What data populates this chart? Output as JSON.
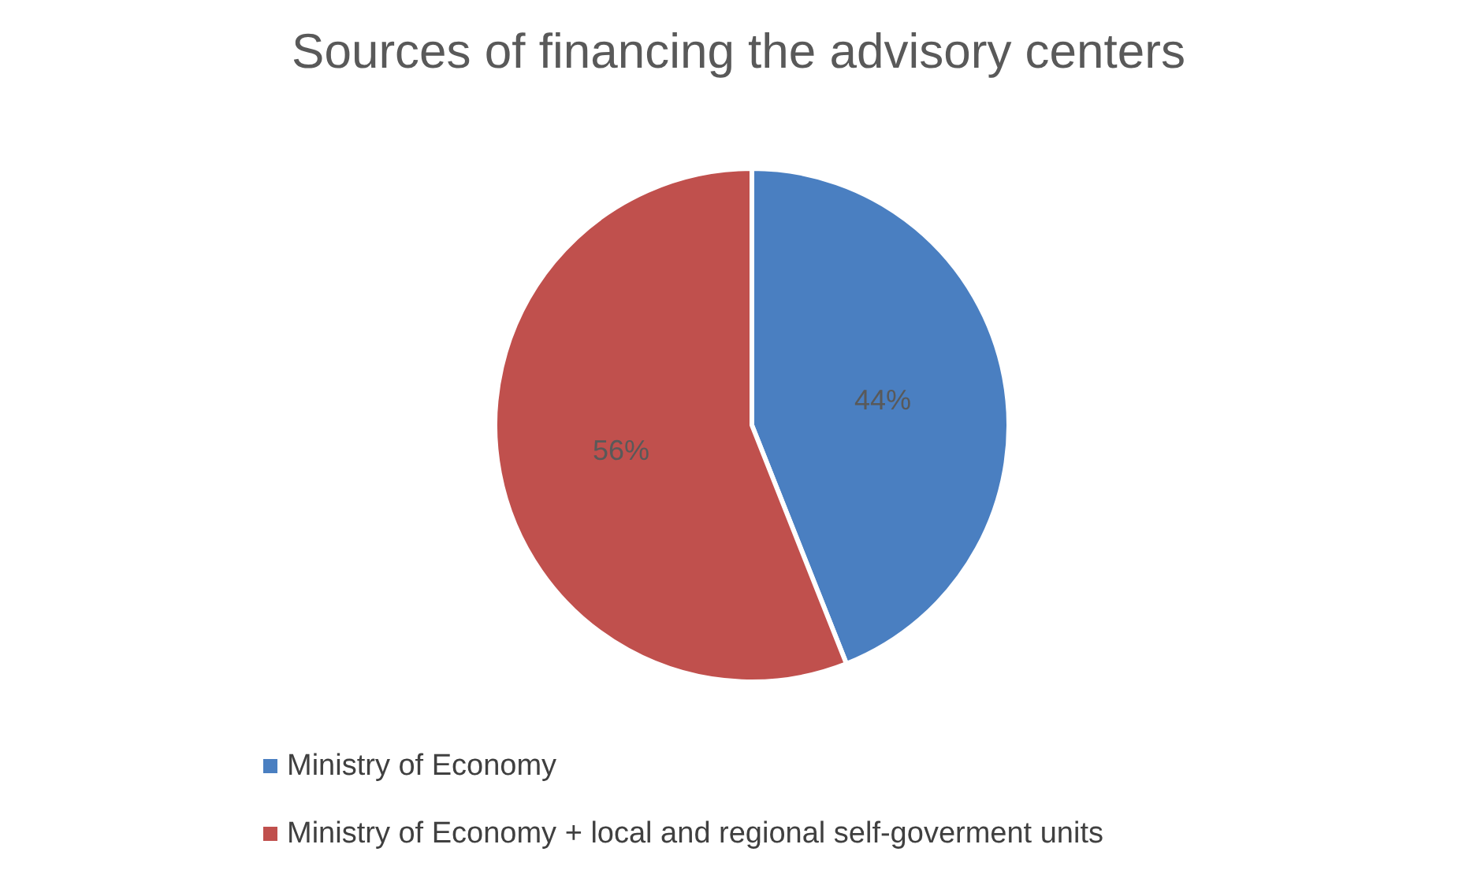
{
  "chart_data": {
    "type": "pie",
    "title": "Sources of financing the advisory centers",
    "categories": [
      "Ministry of Economy",
      "Ministry of Economy + local and regional self-goverment units"
    ],
    "values": [
      44,
      56
    ],
    "colors": [
      "#4a7fc1",
      "#c0504d"
    ],
    "value_labels": [
      "44%",
      "56%"
    ],
    "legend": "bottom left"
  }
}
